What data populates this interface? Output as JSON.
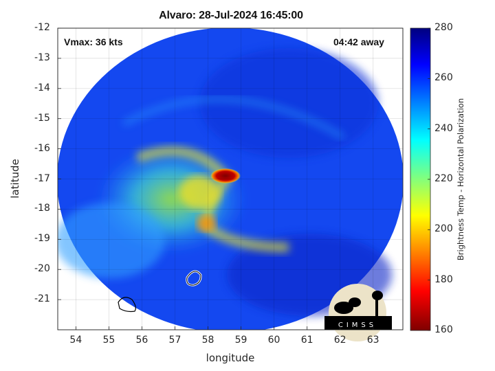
{
  "title": "Alvaro: 28-Jul-2024 16:45:00",
  "annotations": {
    "vmax": "Vmax: 36 kts",
    "time_away": "04:42 away"
  },
  "chart_data": {
    "type": "heatmap",
    "title": "Alvaro: 28-Jul-2024 16:45:00",
    "xlabel": "longitude",
    "ylabel": "latitude",
    "xlim": [
      53.45,
      63.9
    ],
    "ylim": [
      -22,
      -12
    ],
    "xticks": [
      "54",
      "55",
      "56",
      "57",
      "58",
      "59",
      "60",
      "61",
      "62",
      "63"
    ],
    "yticks": [
      "-12",
      "-13",
      "-14",
      "-15",
      "-16",
      "-17",
      "-18",
      "-19",
      "-20",
      "-21"
    ],
    "grid": true,
    "colorbar": {
      "label": "Brightness Temp - Horizontal Polarization",
      "range": [
        160,
        280
      ],
      "ticks": [
        "280",
        "260",
        "240",
        "220",
        "200",
        "180",
        "160"
      ],
      "colormap": "jet"
    },
    "features": {
      "coldest_core": {
        "lon": 58.6,
        "lat": -16.9,
        "value": 165
      }
    }
  },
  "logo": {
    "text": "CIMSS"
  }
}
